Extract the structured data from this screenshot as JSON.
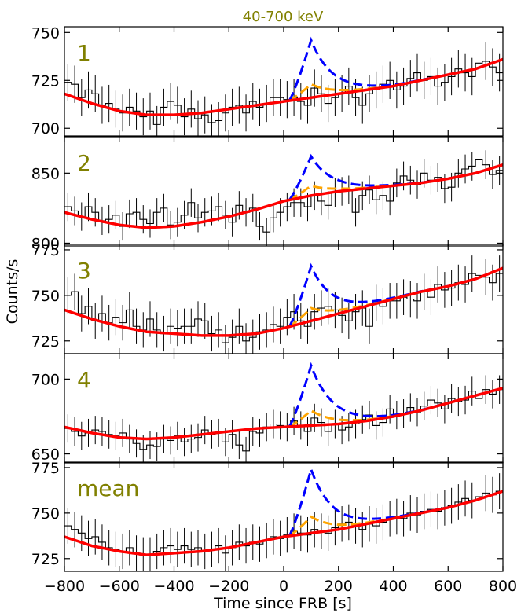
{
  "figure": {
    "title": "40-700 keV",
    "xlabel": "Time since FRB [s]",
    "ylabel": "Counts/s",
    "colors": {
      "title": "#808000",
      "panel_label": "#808000",
      "data": "#000000",
      "background_model": "#ff0000",
      "blue_model": "#0000ff",
      "orange_model": "#ffa500"
    }
  },
  "chart_data": {
    "type": "line",
    "title": "40-700 keV",
    "xlabel": "Time since FRB [s]",
    "ylabel": "Counts/s",
    "xlim": [
      -800,
      800
    ],
    "xticks": [
      -800,
      -600,
      -400,
      -200,
      0,
      200,
      400,
      600,
      800
    ],
    "xtick_labels": [
      "−800",
      "−600",
      "−400",
      "−200",
      "0",
      "200",
      "400",
      "600",
      "800"
    ],
    "grid": false,
    "legend": "none",
    "bin_width": 30,
    "model_pulse_center": 100,
    "panels": [
      {
        "label": "1",
        "ylim": [
          696,
          753
        ],
        "yticks": [
          700,
          725,
          750
        ],
        "ytick_labels": [
          "700",
          "725",
          "750"
        ],
        "background": {
          "x": [
            -800,
            -700,
            -600,
            -500,
            -400,
            -300,
            -200,
            -100,
            0,
            100,
            200,
            300,
            400,
            500,
            600,
            700,
            800
          ],
          "y": [
            718,
            713,
            709,
            707,
            707,
            708,
            710,
            712,
            714,
            716,
            718,
            720,
            722,
            725,
            728,
            731,
            736
          ]
        },
        "pulse_blue_amplitude": 30,
        "pulse_orange_amplitude": 7,
        "bin_counts": [
          724,
          723,
          716,
          720,
          718,
          712,
          713,
          710,
          708,
          711,
          709,
          706,
          709,
          702,
          711,
          714,
          712,
          706,
          710,
          705,
          707,
          703,
          704,
          708,
          711,
          712,
          708,
          714,
          711,
          713,
          716,
          716,
          715,
          716,
          714,
          712,
          721,
          718,
          713,
          716,
          718,
          722,
          716,
          712,
          718,
          720,
          723,
          725,
          720,
          722,
          726,
          729,
          725,
          727,
          722,
          724,
          727,
          731,
          729,
          727,
          734,
          735,
          732,
          729
        ]
      },
      {
        "label": "2",
        "ylim": [
          798,
          876
        ],
        "yticks": [
          800,
          850
        ],
        "ytick_labels": [
          "800",
          "850"
        ],
        "background": {
          "x": [
            -800,
            -700,
            -600,
            -500,
            -400,
            -300,
            -200,
            -100,
            0,
            100,
            200,
            300,
            400,
            500,
            600,
            700,
            800
          ],
          "y": [
            822,
            817,
            813,
            811,
            812,
            815,
            819,
            824,
            830,
            834,
            837,
            839,
            841,
            843,
            846,
            850,
            856
          ]
        },
        "pulse_blue_amplitude": 28,
        "pulse_orange_amplitude": 7,
        "bin_counts": [
          826,
          823,
          819,
          826,
          822,
          816,
          817,
          820,
          812,
          821,
          822,
          817,
          814,
          822,
          825,
          813,
          815,
          820,
          829,
          818,
          822,
          823,
          826,
          820,
          815,
          827,
          822,
          825,
          812,
          808,
          818,
          822,
          826,
          829,
          829,
          826,
          834,
          830,
          827,
          836,
          837,
          838,
          822,
          834,
          838,
          831,
          834,
          830,
          843,
          848,
          845,
          842,
          850,
          845,
          847,
          839,
          840,
          850,
          853,
          855,
          860,
          856,
          849,
          852
        ]
      },
      {
        "label": "3",
        "ylim": [
          718,
          778
        ],
        "yticks": [
          725,
          750,
          775
        ],
        "ytick_labels": [
          "725",
          "750",
          "775"
        ],
        "background": {
          "x": [
            -800,
            -700,
            -600,
            -500,
            -400,
            -300,
            -200,
            -100,
            0,
            100,
            200,
            300,
            400,
            500,
            600,
            700,
            800
          ],
          "y": [
            742,
            737,
            733,
            730,
            729,
            728,
            728,
            729,
            732,
            736,
            740,
            744,
            748,
            752,
            755,
            759,
            765
          ]
        },
        "pulse_blue_amplitude": 30,
        "pulse_orange_amplitude": 7,
        "bin_counts": [
          750,
          752,
          740,
          744,
          736,
          740,
          735,
          738,
          735,
          742,
          733,
          731,
          737,
          731,
          729,
          733,
          732,
          733,
          733,
          737,
          736,
          729,
          731,
          724,
          727,
          733,
          725,
          727,
          730,
          731,
          734,
          733,
          738,
          741,
          736,
          733,
          741,
          743,
          744,
          742,
          739,
          736,
          741,
          743,
          733,
          746,
          744,
          747,
          747,
          749,
          748,
          747,
          752,
          749,
          756,
          753,
          754,
          757,
          756,
          762,
          761,
          760,
          757,
          762
        ]
      },
      {
        "label": "4",
        "ylim": [
          644,
          717
        ],
        "yticks": [
          650,
          700
        ],
        "ytick_labels": [
          "650",
          "700"
        ],
        "background": {
          "x": [
            -800,
            -700,
            -600,
            -500,
            -400,
            -300,
            -200,
            -100,
            0,
            100,
            200,
            300,
            400,
            500,
            600,
            700,
            800
          ],
          "y": [
            668,
            664,
            661,
            660,
            661,
            663,
            665,
            667,
            668,
            669,
            670,
            672,
            675,
            679,
            684,
            689,
            694
          ]
        },
        "pulse_blue_amplitude": 40,
        "pulse_orange_amplitude": 10,
        "bin_counts": [
          667,
          665,
          662,
          664,
          666,
          665,
          663,
          662,
          664,
          660,
          657,
          653,
          656,
          655,
          660,
          659,
          662,
          658,
          660,
          661,
          666,
          663,
          664,
          658,
          663,
          656,
          652,
          665,
          664,
          668,
          670,
          669,
          668,
          672,
          669,
          665,
          674,
          671,
          665,
          670,
          666,
          668,
          670,
          673,
          676,
          669,
          671,
          680,
          676,
          677,
          681,
          678,
          682,
          686,
          684,
          680,
          687,
          685,
          686,
          692,
          687,
          693,
          690,
          693
        ]
      },
      {
        "label": "mean",
        "ylim": [
          718,
          778
        ],
        "yticks": [
          725,
          750,
          775
        ],
        "ytick_labels": [
          "725",
          "750",
          "775"
        ],
        "background": {
          "x": [
            -800,
            -700,
            -600,
            -500,
            -400,
            -300,
            -200,
            -100,
            0,
            100,
            200,
            300,
            400,
            500,
            600,
            700,
            800
          ],
          "y": [
            737,
            732,
            729,
            727,
            728,
            729,
            731,
            734,
            737,
            739,
            741,
            744,
            747,
            750,
            753,
            757,
            762
          ]
        },
        "pulse_blue_amplitude": 35,
        "pulse_orange_amplitude": 9,
        "bin_counts": [
          743,
          741,
          739,
          736,
          737,
          734,
          731,
          730,
          729,
          731,
          728,
          727,
          727,
          729,
          731,
          732,
          730,
          732,
          730,
          731,
          729,
          730,
          732,
          728,
          731,
          734,
          732,
          734,
          733,
          735,
          737,
          736,
          738,
          740,
          739,
          738,
          741,
          740,
          739,
          742,
          744,
          745,
          743,
          741,
          744,
          743,
          745,
          747,
          748,
          747,
          750,
          749,
          751,
          752,
          751,
          753,
          754,
          756,
          758,
          757,
          759,
          761,
          760,
          762
        ]
      }
    ]
  }
}
